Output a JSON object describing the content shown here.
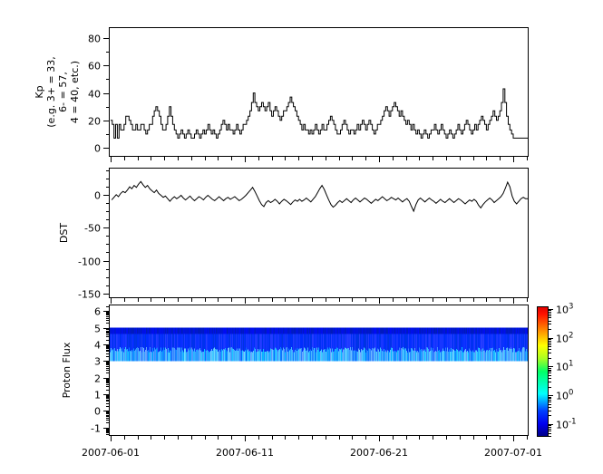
{
  "colors": {
    "background": "#ffffff",
    "axis": "#000000",
    "trace": "#000000",
    "band_base_blue": "#0018e0",
    "band_light_blue": "#2090ff"
  },
  "xaxis": {
    "labels": [
      "2007-06-01",
      "2007-06-11",
      "2007-06-21",
      "2007-07-01"
    ],
    "major_days": [
      0,
      10,
      20,
      30
    ],
    "minor_interval_days": 1,
    "start_date": "2007-06-01",
    "end_date": "2007-07-01"
  },
  "chart_data": [
    {
      "id": "kp",
      "type": "line",
      "line_style": "step",
      "title": "",
      "ylabel_lines": [
        "Kp",
        "(e.g. 3+ = 33,",
        "6- = 57,",
        "4 = 40, etc.)"
      ],
      "yticks": {
        "values": [
          0,
          20,
          40,
          60,
          80
        ],
        "labels": [
          "0",
          "20",
          "40",
          "60",
          "80"
        ],
        "minor_interval": 10
      },
      "ylim": [
        -6.6,
        88
      ],
      "grid": false,
      "sample_hours": 3,
      "values": [
        20,
        17,
        7,
        17,
        7,
        17,
        13,
        13,
        17,
        23,
        23,
        20,
        17,
        13,
        13,
        17,
        13,
        13,
        17,
        17,
        13,
        10,
        13,
        17,
        17,
        23,
        27,
        30,
        27,
        23,
        17,
        13,
        13,
        17,
        23,
        30,
        23,
        17,
        13,
        10,
        7,
        10,
        13,
        10,
        7,
        10,
        13,
        10,
        7,
        7,
        10,
        13,
        10,
        7,
        10,
        13,
        10,
        13,
        17,
        13,
        10,
        13,
        10,
        7,
        10,
        13,
        17,
        20,
        17,
        13,
        17,
        13,
        13,
        10,
        13,
        17,
        13,
        10,
        13,
        17,
        17,
        20,
        23,
        27,
        33,
        40,
        33,
        30,
        27,
        30,
        33,
        30,
        27,
        30,
        33,
        27,
        23,
        27,
        30,
        27,
        23,
        20,
        23,
        27,
        27,
        30,
        33,
        37,
        33,
        30,
        27,
        23,
        20,
        17,
        13,
        17,
        13,
        13,
        10,
        13,
        10,
        13,
        17,
        13,
        10,
        13,
        17,
        13,
        13,
        17,
        20,
        23,
        20,
        17,
        13,
        10,
        10,
        13,
        17,
        20,
        17,
        13,
        10,
        13,
        13,
        10,
        13,
        17,
        13,
        17,
        20,
        17,
        13,
        17,
        20,
        17,
        13,
        10,
        13,
        17,
        17,
        20,
        23,
        27,
        30,
        27,
        23,
        27,
        30,
        33,
        30,
        27,
        23,
        27,
        23,
        20,
        17,
        20,
        17,
        13,
        17,
        13,
        10,
        13,
        10,
        7,
        10,
        13,
        10,
        7,
        10,
        13,
        13,
        17,
        13,
        10,
        13,
        17,
        13,
        10,
        7,
        10,
        13,
        10,
        7,
        10,
        13,
        17,
        13,
        10,
        13,
        17,
        20,
        17,
        13,
        10,
        13,
        17,
        13,
        17,
        20,
        23,
        20,
        17,
        13,
        17,
        20,
        23,
        27,
        23,
        20,
        23,
        27,
        33,
        43,
        33,
        23,
        17,
        13,
        10,
        7,
        7,
        7,
        7,
        7,
        7,
        7,
        7
      ]
    },
    {
      "id": "dst",
      "type": "line",
      "line_style": "linear",
      "title": "",
      "ylabel_lines": [
        "DST"
      ],
      "yticks": {
        "values": [
          0,
          -50,
          -100,
          -150
        ],
        "labels": [
          "0",
          "-50",
          "-100",
          "-150"
        ],
        "minor_interval": 12.5
      },
      "ylim": [
        -157,
        41
      ],
      "grid": false,
      "sample_hours": 4,
      "values": [
        -8,
        -4,
        0,
        -3,
        2,
        5,
        3,
        7,
        12,
        9,
        14,
        11,
        16,
        20,
        15,
        11,
        14,
        9,
        6,
        3,
        7,
        2,
        -1,
        -4,
        -2,
        -6,
        -10,
        -6,
        -3,
        -6,
        -4,
        -1,
        -5,
        -8,
        -5,
        -2,
        -6,
        -9,
        -6,
        -3,
        -5,
        -8,
        -4,
        -1,
        -4,
        -7,
        -9,
        -6,
        -3,
        -6,
        -9,
        -6,
        -4,
        -7,
        -5,
        -3,
        -6,
        -9,
        -7,
        -4,
        -1,
        3,
        7,
        11,
        5,
        -2,
        -9,
        -15,
        -18,
        -12,
        -9,
        -12,
        -10,
        -7,
        -10,
        -14,
        -10,
        -7,
        -9,
        -12,
        -15,
        -11,
        -8,
        -10,
        -7,
        -10,
        -8,
        -5,
        -8,
        -11,
        -7,
        -3,
        3,
        9,
        14,
        8,
        0,
        -8,
        -15,
        -19,
        -16,
        -12,
        -9,
        -12,
        -9,
        -6,
        -9,
        -12,
        -8,
        -5,
        -8,
        -11,
        -8,
        -5,
        -7,
        -10,
        -13,
        -10,
        -7,
        -9,
        -6,
        -3,
        -6,
        -9,
        -7,
        -4,
        -6,
        -8,
        -5,
        -8,
        -11,
        -8,
        -6,
        -10,
        -18,
        -25,
        -15,
        -8,
        -5,
        -8,
        -11,
        -8,
        -5,
        -8,
        -10,
        -13,
        -10,
        -7,
        -10,
        -12,
        -9,
        -6,
        -9,
        -12,
        -9,
        -6,
        -8,
        -11,
        -14,
        -11,
        -8,
        -10,
        -7,
        -10,
        -16,
        -20,
        -15,
        -11,
        -8,
        -5,
        -8,
        -12,
        -9,
        -6,
        -3,
        2,
        10,
        19,
        12,
        -2,
        -10,
        -14,
        -10,
        -6,
        -4,
        -6
      ]
    },
    {
      "id": "proton-flux",
      "type": "heatmap",
      "title": "",
      "ylabel_lines": [
        "Proton Flux"
      ],
      "yticks": {
        "values": [
          -1,
          0,
          1,
          2,
          3,
          4,
          5,
          6
        ],
        "labels": [
          "-1",
          "0",
          "1",
          "2",
          "3",
          "4",
          "5",
          "6"
        ],
        "log_minor": true
      },
      "ylim": [
        -1.5,
        6.4
      ],
      "grid": false,
      "band": {
        "y_top": 5,
        "y_bottom": 3,
        "description": "continuous low-intensity proton flux band between channels 3 and 5, mostly ~0.1 (dark blue) with lighter blue streaks near the lower edge",
        "seed": 20070601,
        "hue_dark": 234,
        "hue_light": 206
      }
    }
  ],
  "colorbar": {
    "scale": "log",
    "range_exp": [
      -1.44,
      3.09
    ],
    "ticks": [
      {
        "exp": 3,
        "base": "10",
        "sup": "3"
      },
      {
        "exp": 2,
        "base": "10",
        "sup": "2"
      },
      {
        "exp": 1,
        "base": "10",
        "sup": "1"
      },
      {
        "exp": 0,
        "base": "10",
        "sup": "0"
      },
      {
        "exp": -1,
        "base": "10",
        "sup": "-1"
      }
    ],
    "gradient_bottom_to_top": [
      [
        "0",
        "#000080"
      ],
      [
        "0.10",
        "#0000f0"
      ],
      [
        "0.20",
        "#0040ff"
      ],
      [
        "0.33",
        "#00ffff"
      ],
      [
        "0.50",
        "#00ff66"
      ],
      [
        "0.60",
        "#aaff22"
      ],
      [
        "0.70",
        "#ffff00"
      ],
      [
        "0.82",
        "#ff8800"
      ],
      [
        "0.94",
        "#ff1100"
      ],
      [
        "1",
        "#dd0000"
      ]
    ]
  }
}
